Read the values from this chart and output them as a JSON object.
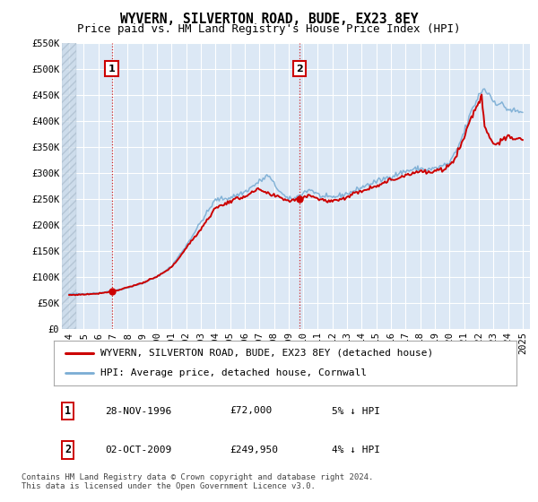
{
  "title": "WYVERN, SILVERTON ROAD, BUDE, EX23 8EY",
  "subtitle": "Price paid vs. HM Land Registry's House Price Index (HPI)",
  "ylim": [
    0,
    550000
  ],
  "yticks": [
    0,
    50000,
    100000,
    150000,
    200000,
    250000,
    300000,
    350000,
    400000,
    450000,
    500000,
    550000
  ],
  "ytick_labels": [
    "£0",
    "£50K",
    "£100K",
    "£150K",
    "£200K",
    "£250K",
    "£300K",
    "£350K",
    "£400K",
    "£450K",
    "£500K",
    "£550K"
  ],
  "xlim_start": 1993.5,
  "xlim_end": 2025.5,
  "xticks": [
    1994,
    1995,
    1996,
    1997,
    1998,
    1999,
    2000,
    2001,
    2002,
    2003,
    2004,
    2005,
    2006,
    2007,
    2008,
    2009,
    2010,
    2011,
    2012,
    2013,
    2014,
    2015,
    2016,
    2017,
    2018,
    2019,
    2020,
    2021,
    2022,
    2023,
    2024,
    2025
  ],
  "transaction1_x": 1996.91,
  "transaction1_y": 72000,
  "transaction2_x": 2009.75,
  "transaction2_y": 249950,
  "property_line_color": "#cc0000",
  "hpi_line_color": "#7aadd4",
  "bg_color": "#ffffff",
  "plot_bg_color": "#dce8f5",
  "grid_color": "#ffffff",
  "hatch_color": "#c8d8e8",
  "legend_label_property": "WYVERN, SILVERTON ROAD, BUDE, EX23 8EY (detached house)",
  "legend_label_hpi": "HPI: Average price, detached house, Cornwall",
  "footer_text": "Contains HM Land Registry data © Crown copyright and database right 2024.\nThis data is licensed under the Open Government Licence v3.0.",
  "title_fontsize": 10.5,
  "subtitle_fontsize": 9,
  "tick_fontsize": 7.5,
  "legend_fontsize": 8,
  "footer_fontsize": 6.5
}
